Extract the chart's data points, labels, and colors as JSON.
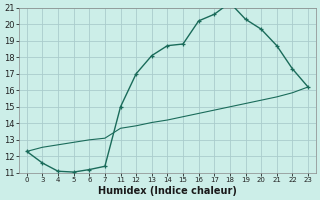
{
  "xlabel": "Humidex (Indice chaleur)",
  "bg_color": "#cceee8",
  "grid_color": "#aacccc",
  "line_color": "#1a6b5a",
  "line1_x": [
    0,
    3,
    4,
    5,
    6,
    7,
    11,
    12,
    13,
    14,
    15,
    16,
    17,
    18,
    19,
    20,
    21,
    22,
    23
  ],
  "line1_y": [
    12.3,
    11.6,
    11.1,
    11.05,
    11.2,
    11.4,
    15.0,
    17.0,
    18.1,
    18.7,
    18.8,
    20.2,
    20.6,
    21.3,
    20.3,
    19.7,
    18.7,
    17.3,
    16.2
  ],
  "line2_x": [
    0,
    3,
    4,
    5,
    6,
    7,
    11,
    12,
    13,
    14,
    15,
    16,
    17,
    18,
    19,
    20,
    21,
    22,
    23
  ],
  "line2_y": [
    12.3,
    12.55,
    12.7,
    12.85,
    13.0,
    13.1,
    13.7,
    13.85,
    14.05,
    14.2,
    14.4,
    14.6,
    14.8,
    15.0,
    15.2,
    15.4,
    15.6,
    15.85,
    16.2
  ],
  "tick_positions": [
    0,
    3,
    4,
    5,
    6,
    7,
    11,
    12,
    13,
    14,
    15,
    16,
    17,
    18,
    19,
    20,
    21,
    22,
    23
  ],
  "tick_labels": [
    "0",
    "3",
    "4",
    "5",
    "6",
    "7",
    "11",
    "12",
    "13",
    "14",
    "15",
    "16",
    "17",
    "18",
    "19",
    "20",
    "21",
    "22",
    "23"
  ],
  "yticks": [
    11,
    12,
    13,
    14,
    15,
    16,
    17,
    18,
    19,
    20,
    21
  ],
  "xlim": [
    -0.5,
    23.5
  ],
  "ylim": [
    11,
    21
  ]
}
